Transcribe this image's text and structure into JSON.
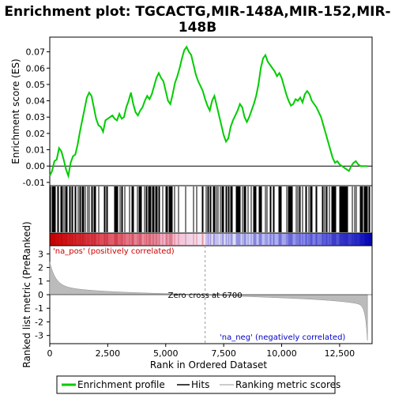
{
  "chart_data": {
    "type": "line",
    "title_line1": "Enrichment plot: TGCACTG,MIR-148A,MIR-152,MIR-",
    "title_line2": "148B",
    "xlabel": "Rank in Ordered Dataset",
    "ylabel_top": "Enrichment score (ES)",
    "ylabel_bottom": "Ranked list metric (PreRanked)",
    "xlim": [
      0,
      13900
    ],
    "es_ylim": [
      -0.012,
      0.079
    ],
    "metric_ylim": [
      -3.6,
      3.6
    ],
    "x_ticks": [
      0,
      2500,
      5000,
      7500,
      10000,
      12500
    ],
    "x_tick_labels": [
      "0",
      "2,500",
      "5,000",
      "7,500",
      "10,000",
      "12,500"
    ],
    "es_ticks": [
      -0.01,
      0.0,
      0.01,
      0.02,
      0.03,
      0.04,
      0.05,
      0.06,
      0.07
    ],
    "es_tick_labels": [
      "-0.01",
      "0.00",
      "0.01",
      "0.02",
      "0.03",
      "0.04",
      "0.05",
      "0.06",
      "0.07"
    ],
    "metric_ticks": [
      -3,
      -2,
      -1,
      0,
      1,
      2,
      3
    ],
    "metric_tick_labels": [
      "-3",
      "-2",
      "-1",
      "0",
      "1",
      "2",
      "3"
    ],
    "zero_cross": 6700,
    "zero_cross_label": "Zero cross at 6700",
    "pos_label": "'na_pos' (positively correlated)",
    "neg_label": "'na_neg' (negatively correlated)",
    "series": [
      {
        "name": "Enrichment profile",
        "color": "#00cc00",
        "x": [
          0,
          100,
          200,
          300,
          400,
          500,
          600,
          700,
          800,
          900,
          1000,
          1100,
          1200,
          1300,
          1400,
          1500,
          1600,
          1700,
          1800,
          1900,
          2000,
          2100,
          2200,
          2300,
          2400,
          2500,
          2600,
          2700,
          2800,
          2900,
          3000,
          3100,
          3200,
          3300,
          3400,
          3500,
          3600,
          3700,
          3800,
          3900,
          4000,
          4100,
          4200,
          4300,
          4400,
          4500,
          4600,
          4700,
          4800,
          4900,
          5000,
          5100,
          5200,
          5300,
          5400,
          5500,
          5600,
          5700,
          5800,
          5900,
          6000,
          6100,
          6200,
          6300,
          6400,
          6500,
          6600,
          6700,
          6800,
          6900,
          7000,
          7100,
          7200,
          7300,
          7400,
          7500,
          7600,
          7700,
          7800,
          7900,
          8000,
          8100,
          8200,
          8300,
          8400,
          8500,
          8600,
          8700,
          8800,
          8900,
          9000,
          9100,
          9200,
          9300,
          9400,
          9500,
          9600,
          9700,
          9800,
          9900,
          10000,
          10100,
          10200,
          10300,
          10400,
          10500,
          10600,
          10700,
          10800,
          10900,
          11000,
          11100,
          11200,
          11300,
          11400,
          11500,
          11600,
          11700,
          11800,
          11900,
          12000,
          12100,
          12200,
          12300,
          12400,
          12500,
          12600,
          12700,
          12800,
          12900,
          13000,
          13100,
          13200,
          13300,
          13400,
          13500,
          13600,
          13700
        ],
        "y": [
          -0.006,
          -0.003,
          0.003,
          0.004,
          0.011,
          0.009,
          0.004,
          -0.002,
          -0.006,
          0.002,
          0.006,
          0.007,
          0.013,
          0.021,
          0.028,
          0.035,
          0.042,
          0.045,
          0.043,
          0.036,
          0.029,
          0.025,
          0.024,
          0.021,
          0.028,
          0.029,
          0.03,
          0.031,
          0.029,
          0.028,
          0.032,
          0.029,
          0.03,
          0.036,
          0.04,
          0.045,
          0.038,
          0.033,
          0.031,
          0.034,
          0.036,
          0.04,
          0.043,
          0.041,
          0.044,
          0.049,
          0.054,
          0.057,
          0.054,
          0.052,
          0.046,
          0.04,
          0.038,
          0.044,
          0.051,
          0.055,
          0.06,
          0.066,
          0.071,
          0.073,
          0.07,
          0.068,
          0.062,
          0.056,
          0.052,
          0.049,
          0.046,
          0.041,
          0.037,
          0.034,
          0.04,
          0.043,
          0.037,
          0.031,
          0.025,
          0.019,
          0.015,
          0.017,
          0.024,
          0.028,
          0.031,
          0.034,
          0.038,
          0.036,
          0.03,
          0.027,
          0.03,
          0.034,
          0.038,
          0.043,
          0.05,
          0.06,
          0.066,
          0.068,
          0.064,
          0.062,
          0.06,
          0.058,
          0.055,
          0.057,
          0.054,
          0.049,
          0.044,
          0.04,
          0.037,
          0.038,
          0.041,
          0.04,
          0.042,
          0.039,
          0.044,
          0.046,
          0.044,
          0.04,
          0.038,
          0.036,
          0.033,
          0.03,
          0.025,
          0.02,
          0.015,
          0.01,
          0.005,
          0.002,
          0.003,
          0.001,
          0.0,
          -0.001,
          -0.002,
          -0.003,
          0.0,
          0.002,
          0.003,
          0.001,
          0.0,
          0.0,
          0.0,
          0.0
        ]
      }
    ],
    "hits_label": "Hits",
    "metric_label": "Ranking metric scores",
    "grid": false,
    "legend_position": "bottom"
  },
  "legend": {
    "items": [
      {
        "label": "Enrichment profile",
        "color": "#00cc00"
      },
      {
        "label": "Hits",
        "color": "#000000"
      },
      {
        "label": "Ranking metric scores",
        "color": "#bbbbbb"
      }
    ]
  }
}
